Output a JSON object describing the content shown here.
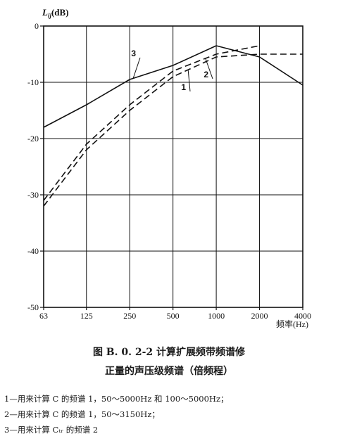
{
  "chart_data": {
    "type": "line",
    "ylabel": "L_ij(dB)",
    "xlabel": "频率(Hz)",
    "x_ticks": [
      "63",
      "125",
      "250",
      "500",
      "1000",
      "2000",
      "4000"
    ],
    "y_ticks": [
      "0",
      "-10",
      "-20",
      "-30",
      "-40",
      "-50"
    ],
    "ylim": [
      -50,
      0
    ],
    "grid": true,
    "series": [
      {
        "name": "1",
        "style": "dashed",
        "x": [
          63,
          125,
          250,
          500,
          1000,
          2000,
          4000
        ],
        "y": [
          -32,
          -22,
          -15,
          -9,
          -5.5,
          -5,
          -5
        ]
      },
      {
        "name": "2",
        "style": "dashed",
        "x": [
          63,
          125,
          250,
          500,
          1000,
          2000
        ],
        "y": [
          -31,
          -21,
          -14,
          -8,
          -5,
          -3.5
        ]
      },
      {
        "name": "3",
        "style": "solid",
        "x": [
          63,
          125,
          250,
          500,
          1000,
          2000,
          4000
        ],
        "y": [
          -18,
          -14,
          -9.5,
          -7,
          -3.5,
          -5.5,
          -10.5
        ]
      }
    ]
  },
  "caption": {
    "line1": "图 B. 0. 2-2  计算扩展频带频谱修",
    "line2": "正量的声压级频谱（倍频程）"
  },
  "notes": [
    "1—用来计算 C 的频谱 1，50～5000Hz 和 100～5000Hz；",
    "2—用来计算 C 的频谱 1，50～3150Hz；",
    "3—用来计算 Cₜᵣ 的频谱 2"
  ],
  "colors": {
    "ink": "#111111",
    "grid": "#111111"
  }
}
